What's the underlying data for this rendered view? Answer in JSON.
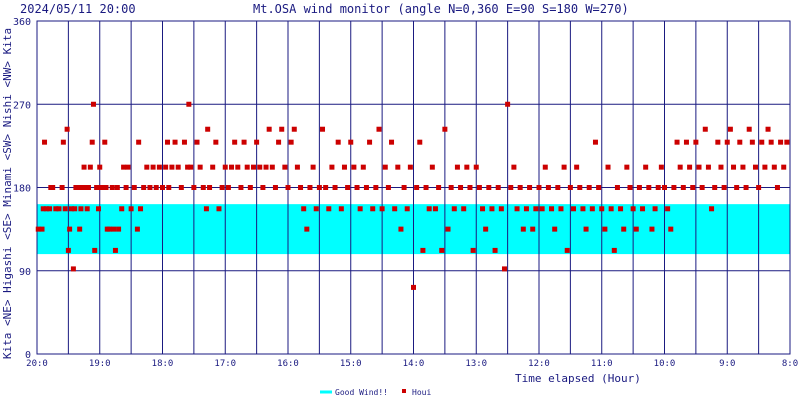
{
  "header": {
    "timestamp": "2024/05/11 20:00",
    "title": "Mt.OSA wind monitor (angle N=0,360 E=90 S=180 W=270)"
  },
  "chart_data": {
    "type": "scatter",
    "title": "Mt.OSA wind monitor (angle N=0,360 E=90 S=180 W=270)",
    "xlabel": "Time elapsed (Hour)",
    "ylabel": "Kita <NE> Higashi <SE> Minami <SW> Nishi <NW> Kita",
    "ylabel_parts": [
      "Kita",
      "<NE>",
      "Higashi",
      "<SE>",
      "Minami",
      "<SW>",
      "Nishi",
      "<NW>",
      "Kita"
    ],
    "ylim": [
      0,
      360
    ],
    "xlim": [
      0,
      12
    ],
    "x_axis_reversed_time": true,
    "grid": true,
    "y_ticks": [
      {
        "value": 0,
        "label": "0"
      },
      {
        "value": 90,
        "label": "90"
      },
      {
        "value": 180,
        "label": "180"
      },
      {
        "value": 270,
        "label": "270"
      },
      {
        "value": 360,
        "label": "360"
      }
    ],
    "x_ticks": [
      {
        "value": 0,
        "label": "20:0"
      },
      {
        "value": 1,
        "label": "19:0"
      },
      {
        "value": 2,
        "label": "18:0"
      },
      {
        "value": 3,
        "label": "17:0"
      },
      {
        "value": 4,
        "label": "16:0"
      },
      {
        "value": 5,
        "label": "15:0"
      },
      {
        "value": 6,
        "label": "14:0"
      },
      {
        "value": 7,
        "label": "13:0"
      },
      {
        "value": 8,
        "label": "12:0"
      },
      {
        "value": 9,
        "label": "11:0"
      },
      {
        "value": 10,
        "label": "10:0"
      },
      {
        "value": 11,
        "label": "9:0"
      },
      {
        "value": 12,
        "label": "8:0"
      }
    ],
    "good_wind_band": {
      "y_min": 108,
      "y_max": 162,
      "label": "Good Wind!!",
      "color": "#00ffff"
    },
    "series": [
      {
        "name": "Houi",
        "color": "#cc0000",
        "points": [
          [
            0.02,
            135
          ],
          [
            0.08,
            135
          ],
          [
            0.1,
            157
          ],
          [
            0.12,
            229
          ],
          [
            0.15,
            157
          ],
          [
            0.2,
            157
          ],
          [
            0.22,
            180
          ],
          [
            0.25,
            180
          ],
          [
            0.3,
            157
          ],
          [
            0.35,
            157
          ],
          [
            0.4,
            180
          ],
          [
            0.42,
            229
          ],
          [
            0.45,
            157
          ],
          [
            0.48,
            243
          ],
          [
            0.5,
            112
          ],
          [
            0.52,
            135
          ],
          [
            0.55,
            157
          ],
          [
            0.58,
            92
          ],
          [
            0.6,
            157
          ],
          [
            0.62,
            180
          ],
          [
            0.65,
            180
          ],
          [
            0.68,
            135
          ],
          [
            0.7,
            157
          ],
          [
            0.72,
            180
          ],
          [
            0.75,
            202
          ],
          [
            0.78,
            180
          ],
          [
            0.8,
            157
          ],
          [
            0.82,
            180
          ],
          [
            0.85,
            202
          ],
          [
            0.88,
            229
          ],
          [
            0.9,
            270
          ],
          [
            0.92,
            112
          ],
          [
            0.95,
            180
          ],
          [
            0.98,
            157
          ],
          [
            1.0,
            202
          ],
          [
            1.02,
            180
          ],
          [
            1.05,
            180
          ],
          [
            1.08,
            229
          ],
          [
            1.1,
            180
          ],
          [
            1.12,
            135
          ],
          [
            1.15,
            135
          ],
          [
            1.2,
            180
          ],
          [
            1.22,
            135
          ],
          [
            1.25,
            112
          ],
          [
            1.28,
            180
          ],
          [
            1.3,
            135
          ],
          [
            1.35,
            157
          ],
          [
            1.38,
            202
          ],
          [
            1.42,
            180
          ],
          [
            1.45,
            202
          ],
          [
            1.5,
            157
          ],
          [
            1.55,
            180
          ],
          [
            1.6,
            135
          ],
          [
            1.62,
            229
          ],
          [
            1.65,
            157
          ],
          [
            1.7,
            180
          ],
          [
            1.75,
            202
          ],
          [
            1.8,
            180
          ],
          [
            1.85,
            202
          ],
          [
            1.9,
            180
          ],
          [
            1.95,
            202
          ],
          [
            2.0,
            180
          ],
          [
            2.05,
            202
          ],
          [
            2.08,
            229
          ],
          [
            2.1,
            180
          ],
          [
            2.15,
            202
          ],
          [
            2.2,
            229
          ],
          [
            2.25,
            202
          ],
          [
            2.3,
            180
          ],
          [
            2.35,
            229
          ],
          [
            2.4,
            202
          ],
          [
            2.42,
            270
          ],
          [
            2.45,
            202
          ],
          [
            2.5,
            180
          ],
          [
            2.55,
            229
          ],
          [
            2.6,
            202
          ],
          [
            2.65,
            180
          ],
          [
            2.7,
            157
          ],
          [
            2.72,
            243
          ],
          [
            2.75,
            180
          ],
          [
            2.8,
            202
          ],
          [
            2.85,
            229
          ],
          [
            2.9,
            157
          ],
          [
            2.95,
            180
          ],
          [
            3.0,
            202
          ],
          [
            3.05,
            180
          ],
          [
            3.1,
            202
          ],
          [
            3.15,
            229
          ],
          [
            3.2,
            202
          ],
          [
            3.25,
            180
          ],
          [
            3.3,
            229
          ],
          [
            3.35,
            202
          ],
          [
            3.4,
            180
          ],
          [
            3.45,
            202
          ],
          [
            3.5,
            229
          ],
          [
            3.55,
            202
          ],
          [
            3.6,
            180
          ],
          [
            3.65,
            202
          ],
          [
            3.7,
            243
          ],
          [
            3.75,
            202
          ],
          [
            3.8,
            180
          ],
          [
            3.85,
            229
          ],
          [
            3.9,
            243
          ],
          [
            3.95,
            202
          ],
          [
            4.0,
            180
          ],
          [
            4.05,
            229
          ],
          [
            4.1,
            243
          ],
          [
            4.15,
            202
          ],
          [
            4.2,
            180
          ],
          [
            4.25,
            157
          ],
          [
            4.3,
            135
          ],
          [
            4.35,
            180
          ],
          [
            4.4,
            202
          ],
          [
            4.45,
            157
          ],
          [
            4.5,
            180
          ],
          [
            4.55,
            243
          ],
          [
            4.6,
            180
          ],
          [
            4.65,
            157
          ],
          [
            4.7,
            202
          ],
          [
            4.75,
            180
          ],
          [
            4.8,
            229
          ],
          [
            4.85,
            157
          ],
          [
            4.9,
            202
          ],
          [
            4.95,
            180
          ],
          [
            5.0,
            229
          ],
          [
            5.05,
            202
          ],
          [
            5.1,
            180
          ],
          [
            5.15,
            157
          ],
          [
            5.2,
            202
          ],
          [
            5.25,
            180
          ],
          [
            5.3,
            229
          ],
          [
            5.35,
            157
          ],
          [
            5.4,
            180
          ],
          [
            5.45,
            243
          ],
          [
            5.5,
            157
          ],
          [
            5.55,
            202
          ],
          [
            5.6,
            180
          ],
          [
            5.65,
            229
          ],
          [
            5.7,
            157
          ],
          [
            5.75,
            202
          ],
          [
            5.8,
            135
          ],
          [
            5.85,
            180
          ],
          [
            5.9,
            157
          ],
          [
            5.95,
            202
          ],
          [
            6.0,
            72
          ],
          [
            6.05,
            180
          ],
          [
            6.1,
            229
          ],
          [
            6.15,
            112
          ],
          [
            6.2,
            180
          ],
          [
            6.25,
            157
          ],
          [
            6.3,
            202
          ],
          [
            6.35,
            157
          ],
          [
            6.4,
            180
          ],
          [
            6.45,
            112
          ],
          [
            6.5,
            243
          ],
          [
            6.55,
            135
          ],
          [
            6.6,
            180
          ],
          [
            6.65,
            157
          ],
          [
            6.7,
            202
          ],
          [
            6.75,
            180
          ],
          [
            6.8,
            157
          ],
          [
            6.85,
            202
          ],
          [
            6.9,
            180
          ],
          [
            6.95,
            112
          ],
          [
            7.0,
            202
          ],
          [
            7.05,
            180
          ],
          [
            7.1,
            157
          ],
          [
            7.15,
            135
          ],
          [
            7.2,
            180
          ],
          [
            7.25,
            157
          ],
          [
            7.3,
            112
          ],
          [
            7.35,
            180
          ],
          [
            7.4,
            157
          ],
          [
            7.45,
            92
          ],
          [
            7.5,
            270
          ],
          [
            7.55,
            180
          ],
          [
            7.6,
            202
          ],
          [
            7.65,
            157
          ],
          [
            7.7,
            180
          ],
          [
            7.75,
            135
          ],
          [
            7.8,
            157
          ],
          [
            7.85,
            180
          ],
          [
            7.9,
            135
          ],
          [
            7.95,
            157
          ],
          [
            8.0,
            180
          ],
          [
            8.05,
            157
          ],
          [
            8.1,
            202
          ],
          [
            8.15,
            180
          ],
          [
            8.2,
            157
          ],
          [
            8.25,
            135
          ],
          [
            8.3,
            180
          ],
          [
            8.35,
            157
          ],
          [
            8.4,
            202
          ],
          [
            8.45,
            112
          ],
          [
            8.5,
            180
          ],
          [
            8.55,
            157
          ],
          [
            8.6,
            202
          ],
          [
            8.65,
            180
          ],
          [
            8.7,
            157
          ],
          [
            8.75,
            135
          ],
          [
            8.8,
            180
          ],
          [
            8.85,
            157
          ],
          [
            8.9,
            229
          ],
          [
            8.95,
            180
          ],
          [
            9.0,
            157
          ],
          [
            9.05,
            135
          ],
          [
            9.1,
            202
          ],
          [
            9.15,
            157
          ],
          [
            9.2,
            112
          ],
          [
            9.25,
            180
          ],
          [
            9.3,
            157
          ],
          [
            9.35,
            135
          ],
          [
            9.4,
            202
          ],
          [
            9.45,
            180
          ],
          [
            9.5,
            157
          ],
          [
            9.55,
            135
          ],
          [
            9.6,
            180
          ],
          [
            9.65,
            157
          ],
          [
            9.7,
            202
          ],
          [
            9.75,
            180
          ],
          [
            9.8,
            135
          ],
          [
            9.85,
            157
          ],
          [
            9.9,
            180
          ],
          [
            9.95,
            202
          ],
          [
            10.0,
            180
          ],
          [
            10.05,
            157
          ],
          [
            10.1,
            135
          ],
          [
            10.15,
            180
          ],
          [
            10.2,
            229
          ],
          [
            10.25,
            202
          ],
          [
            10.3,
            180
          ],
          [
            10.35,
            229
          ],
          [
            10.4,
            202
          ],
          [
            10.45,
            180
          ],
          [
            10.5,
            229
          ],
          [
            10.55,
            202
          ],
          [
            10.6,
            180
          ],
          [
            10.65,
            243
          ],
          [
            10.7,
            202
          ],
          [
            10.75,
            157
          ],
          [
            10.8,
            180
          ],
          [
            10.85,
            229
          ],
          [
            10.9,
            202
          ],
          [
            10.95,
            180
          ],
          [
            11.0,
            229
          ],
          [
            11.05,
            243
          ],
          [
            11.1,
            202
          ],
          [
            11.15,
            180
          ],
          [
            11.2,
            229
          ],
          [
            11.25,
            202
          ],
          [
            11.3,
            180
          ],
          [
            11.35,
            243
          ],
          [
            11.4,
            229
          ],
          [
            11.45,
            202
          ],
          [
            11.5,
            180
          ],
          [
            11.55,
            229
          ],
          [
            11.6,
            202
          ],
          [
            11.65,
            243
          ],
          [
            11.7,
            229
          ],
          [
            11.75,
            202
          ],
          [
            11.8,
            180
          ],
          [
            11.85,
            229
          ],
          [
            11.9,
            202
          ],
          [
            11.95,
            229
          ]
        ]
      }
    ],
    "legend": {
      "placement": "bottom-center",
      "items": [
        {
          "label": "Good Wind!!",
          "color": "#00ffff",
          "kind": "line"
        },
        {
          "label": "Houi",
          "color": "#cc0000",
          "kind": "square"
        }
      ]
    }
  },
  "style": {
    "plot_bg": "#ffffff",
    "grid_color": "#1a1a80",
    "text_color": "#1a1a80",
    "axis_color": "#000000"
  }
}
